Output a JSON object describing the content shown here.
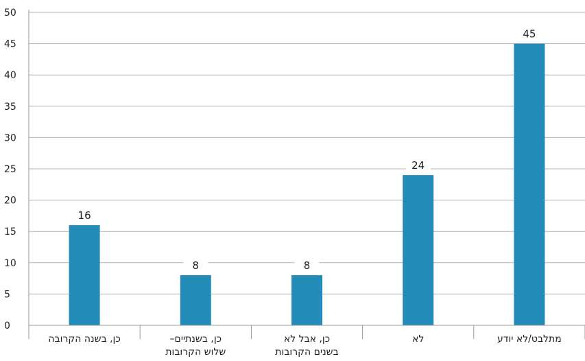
{
  "chart_data": {
    "type": "bar",
    "categories": [
      [
        "כן, בשנה הקרובה"
      ],
      [
        "כן, בשנתיים–",
        "שלוש הקרובות"
      ],
      [
        "כן, אבל לא",
        "בשנים הקרובות"
      ],
      [
        "לא"
      ],
      [
        "מתלבט/לא יודע"
      ]
    ],
    "values": [
      16,
      8,
      8,
      24,
      45
    ],
    "data_labels": [
      "16",
      "8",
      "8",
      "24",
      "45"
    ],
    "ylim": [
      0,
      50
    ],
    "yticks": [
      0,
      5,
      10,
      15,
      20,
      25,
      30,
      35,
      40,
      45,
      50
    ],
    "grid": true,
    "legend": "none",
    "bar_color": "#238bb8",
    "grid_color": "#b3b3b3"
  }
}
